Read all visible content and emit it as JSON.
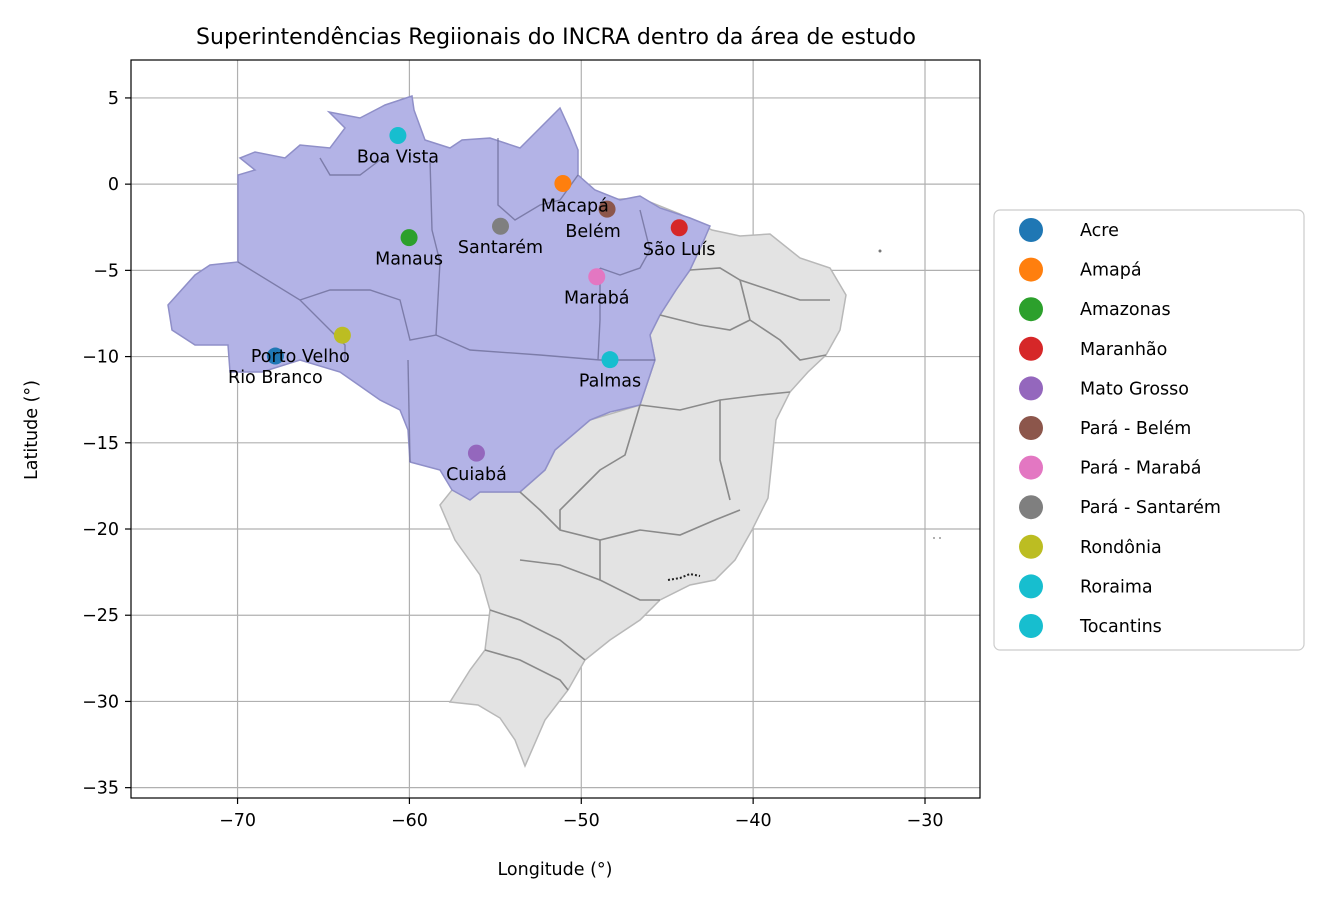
{
  "title": "Superintendências Regiionais do INCRA dentro da área de estudo",
  "xlabel": "Longitude (°)",
  "ylabel": "Latitude (°)",
  "chart_data": {
    "type": "scatter",
    "map": "Brazil states, study area (Legal Amazon) highlighted",
    "xlim": [
      -76.2,
      -26.8
    ],
    "ylim": [
      -35.6,
      7.2
    ],
    "xticks": [
      -70,
      -60,
      -50,
      -40,
      -30
    ],
    "yticks": [
      5,
      0,
      -5,
      -10,
      -15,
      -20,
      -25,
      -30,
      -35
    ],
    "xtick_labels": [
      "−70",
      "−60",
      "−50",
      "−40",
      "−30"
    ],
    "ytick_labels": [
      "5",
      "0",
      "−5",
      "−10",
      "−15",
      "−20",
      "−25",
      "−30",
      "−35"
    ],
    "grid": true,
    "legend_position": "right",
    "study_area_color": "#b3b3e6",
    "outside_area_color": "#e3e3e3",
    "points": [
      {
        "series": "Acre",
        "city": "Rio Branco",
        "lon": -67.8,
        "lat": -9.97,
        "color": "#1f77b4"
      },
      {
        "series": "Amapá",
        "city": "Macapá",
        "lon": -51.07,
        "lat": 0.04,
        "color": "#ff7f0e"
      },
      {
        "series": "Amazonas",
        "city": "Manaus",
        "lon": -60.02,
        "lat": -3.1,
        "color": "#2ca02c"
      },
      {
        "series": "Maranhão",
        "city": "São Luís",
        "lon": -44.3,
        "lat": -2.53,
        "color": "#d62728"
      },
      {
        "series": "Mato Grosso",
        "city": "Cuiabá",
        "lon": -56.1,
        "lat": -15.6,
        "color": "#9467bd"
      },
      {
        "series": "Pará - Belém",
        "city": "Belém",
        "lon": -48.5,
        "lat": -1.45,
        "color": "#8c564b"
      },
      {
        "series": "Pará - Marabá",
        "city": "Marabá",
        "lon": -49.1,
        "lat": -5.37,
        "color": "#e377c2"
      },
      {
        "series": "Pará - Santarém",
        "city": "Santarém",
        "lon": -54.7,
        "lat": -2.44,
        "color": "#7f7f7f"
      },
      {
        "series": "Rondônia",
        "city": "Porto Velho",
        "lon": -63.9,
        "lat": -8.76,
        "color": "#bcbd22"
      },
      {
        "series": "Roraima",
        "city": "Boa Vista",
        "lon": -60.67,
        "lat": 2.82,
        "color": "#17becf"
      },
      {
        "series": "Tocantins",
        "city": "Palmas",
        "lon": -48.33,
        "lat": -10.18,
        "color": "#17becf"
      }
    ]
  }
}
